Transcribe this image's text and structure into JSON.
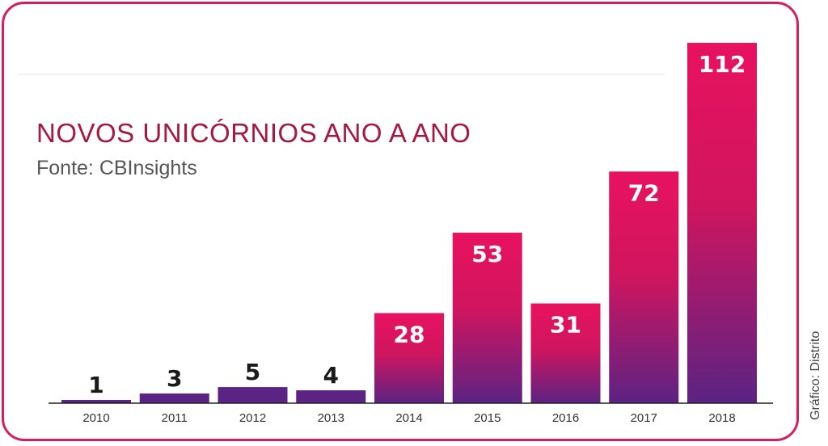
{
  "chart_data": {
    "type": "bar",
    "title": "NOVOS UNICÓRNIOS ANO A ANO",
    "subtitle": "Fonte: CBInsights",
    "categories": [
      "2010",
      "2011",
      "2012",
      "2013",
      "2014",
      "2015",
      "2016",
      "2017",
      "2018"
    ],
    "values": [
      1,
      3,
      5,
      4,
      28,
      53,
      31,
      72,
      112
    ],
    "value_labels": [
      "1",
      "3",
      "5",
      "4",
      "28",
      "53",
      "31",
      "72",
      "112"
    ],
    "xlabel": "",
    "ylabel": "",
    "ylim": [
      0,
      112
    ],
    "grid": false,
    "legend": "none",
    "colors": {
      "bar_top": "#e8125f",
      "bar_bottom": "#5b2383",
      "value_label_inside": "#ffffff",
      "value_label_outside": "#1a1a1a",
      "title": "#a5193f",
      "frame": "#d61e5c"
    }
  },
  "credit": "Gráfico: Distrito"
}
